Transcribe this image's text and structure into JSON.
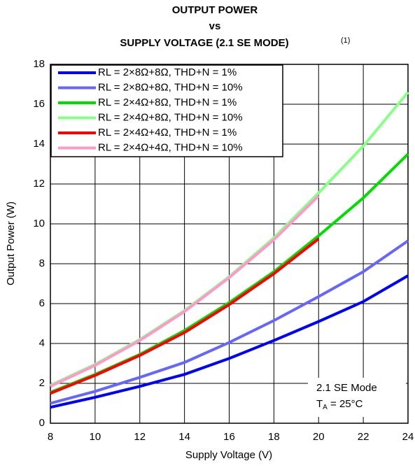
{
  "chart_data": {
    "type": "line",
    "title": [
      "OUTPUT POWER",
      "vs",
      "SUPPLY VOLTAGE (2.1 SE MODE)"
    ],
    "title_note": "(1)",
    "x_label": "Supply Voltage (V)",
    "y_label": "Output Power (W)",
    "x": [
      8,
      10,
      12,
      14,
      16,
      18,
      20,
      22,
      24
    ],
    "series": [
      {
        "name": "RL = 2×8Ω+8Ω, THD+N = 1%",
        "color": "#0000ff",
        "values": [
          0.8,
          1.3,
          1.85,
          2.45,
          3.25,
          4.15,
          5.1,
          6.1,
          7.4
        ]
      },
      {
        "name": "RL = 2×8Ω+8Ω, THD+N = 10%",
        "color": "#6666ff",
        "values": [
          1.0,
          1.6,
          2.3,
          3.05,
          4.05,
          5.15,
          6.35,
          7.6,
          9.15
        ]
      },
      {
        "name": "RL = 2×4Ω+8Ω, THD+N = 1%",
        "color": "#00dd00",
        "values": [
          1.55,
          2.45,
          3.45,
          4.65,
          6.05,
          7.6,
          9.4,
          11.3,
          13.5
        ]
      },
      {
        "name": "RL = 2×4Ω+8Ω, THD+N = 10%",
        "color": "#88ff88",
        "values": [
          1.9,
          2.95,
          4.2,
          5.65,
          7.35,
          9.3,
          11.55,
          13.9,
          16.6
        ]
      },
      {
        "name": "RL = 2×4Ω+4Ω, THD+N = 1%",
        "color": "#ff0000",
        "values": [
          1.5,
          2.4,
          3.4,
          4.55,
          5.95,
          7.5,
          9.25,
          null,
          null
        ]
      },
      {
        "name": "RL = 2×4Ω+4Ω, THD+N = 10%",
        "color": "#ff99cc",
        "values": [
          1.85,
          2.9,
          4.15,
          5.6,
          7.3,
          9.2,
          11.4,
          null,
          null
        ]
      }
    ],
    "xlim": [
      8,
      24
    ],
    "xticks": [
      8,
      10,
      12,
      14,
      16,
      18,
      20,
      22,
      24
    ],
    "ylim": [
      0,
      18
    ],
    "yticks": [
      0,
      2,
      4,
      6,
      8,
      10,
      12,
      14,
      16,
      18
    ],
    "grid": true,
    "legend": "upper left",
    "annotation": {
      "line1": "2.1 SE Mode",
      "t": "T",
      "sub": "A",
      "rest": " = 25°C"
    }
  }
}
